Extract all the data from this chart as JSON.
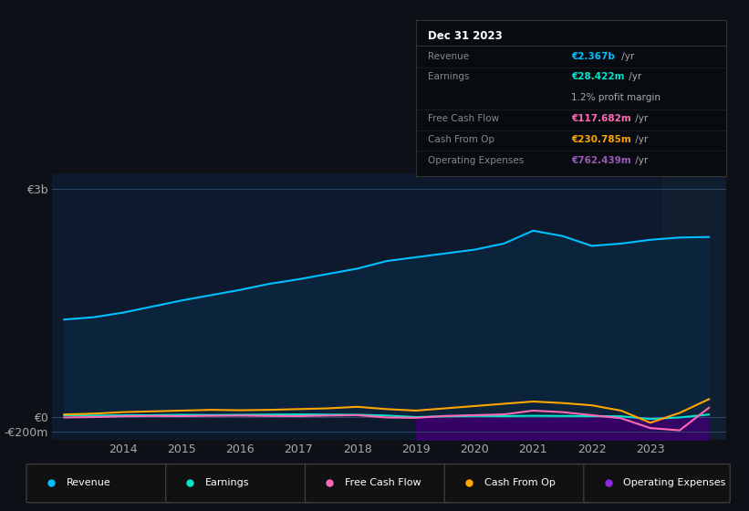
{
  "bg_color": "#0d1117",
  "plot_bg_color": "#0d1a2d",
  "years": [
    2013,
    2013.5,
    2014,
    2014.5,
    2015,
    2015.5,
    2016,
    2016.5,
    2017,
    2017.5,
    2018,
    2018.5,
    2019,
    2019.5,
    2020,
    2020.5,
    2021,
    2021.5,
    2022,
    2022.5,
    2023,
    2023.5,
    2024
  ],
  "revenue": [
    1280,
    1310,
    1370,
    1450,
    1530,
    1600,
    1670,
    1750,
    1810,
    1880,
    1950,
    2050,
    2100,
    2150,
    2200,
    2280,
    2450,
    2380,
    2250,
    2280,
    2330,
    2360,
    2367
  ],
  "earnings": [
    20,
    15,
    18,
    20,
    25,
    22,
    25,
    28,
    30,
    28,
    25,
    15,
    -5,
    5,
    10,
    8,
    12,
    10,
    8,
    5,
    -30,
    -10,
    28
  ],
  "free_cash_flow": [
    -10,
    -5,
    5,
    10,
    8,
    12,
    15,
    10,
    8,
    15,
    20,
    -10,
    -15,
    10,
    20,
    30,
    80,
    60,
    20,
    -20,
    -150,
    -180,
    118
  ],
  "cash_from_op": [
    30,
    40,
    60,
    70,
    80,
    90,
    85,
    90,
    100,
    110,
    130,
    100,
    80,
    110,
    140,
    170,
    200,
    180,
    150,
    80,
    -80,
    50,
    231
  ],
  "op_expenses_years": [
    2019,
    2019.5,
    2020,
    2020.5,
    2021,
    2021.5,
    2022,
    2022.5,
    2023,
    2023.5,
    2024
  ],
  "op_expenses": [
    -680,
    -700,
    -690,
    -720,
    -710,
    -730,
    -750,
    -760,
    -755,
    -762,
    -762
  ],
  "revenue_color": "#00bfff",
  "earnings_color": "#00e5cc",
  "free_cash_flow_color": "#ff69b4",
  "cash_from_op_color": "#ffa500",
  "op_expenses_color": "#8a2be2",
  "op_expenses_fill_color": "#3b0070",
  "revenue_fill_color": "#0a2a45",
  "info_box": {
    "title": "Dec 31 2023",
    "rows": [
      {
        "label": "Revenue",
        "value": "€2.367b /yr",
        "value_color": "#00bfff"
      },
      {
        "label": "Earnings",
        "value": "€28.422m /yr",
        "value_color": "#00e5cc"
      },
      {
        "label": "",
        "value": "1.2% profit margin",
        "value_color": "#aaaaaa"
      },
      {
        "label": "Free Cash Flow",
        "value": "€117.682m /yr",
        "value_color": "#ff69b4"
      },
      {
        "label": "Cash From Op",
        "value": "€230.785m /yr",
        "value_color": "#ffa500"
      },
      {
        "label": "Operating Expenses",
        "value": "€762.439m /yr",
        "value_color": "#9b59b6"
      }
    ]
  },
  "legend_items": [
    {
      "label": "Revenue",
      "color": "#00bfff"
    },
    {
      "label": "Earnings",
      "color": "#00e5cc"
    },
    {
      "label": "Free Cash Flow",
      "color": "#ff69b4"
    },
    {
      "label": "Cash From Op",
      "color": "#ffa500"
    },
    {
      "label": "Operating Expenses",
      "color": "#8a2be2"
    }
  ]
}
